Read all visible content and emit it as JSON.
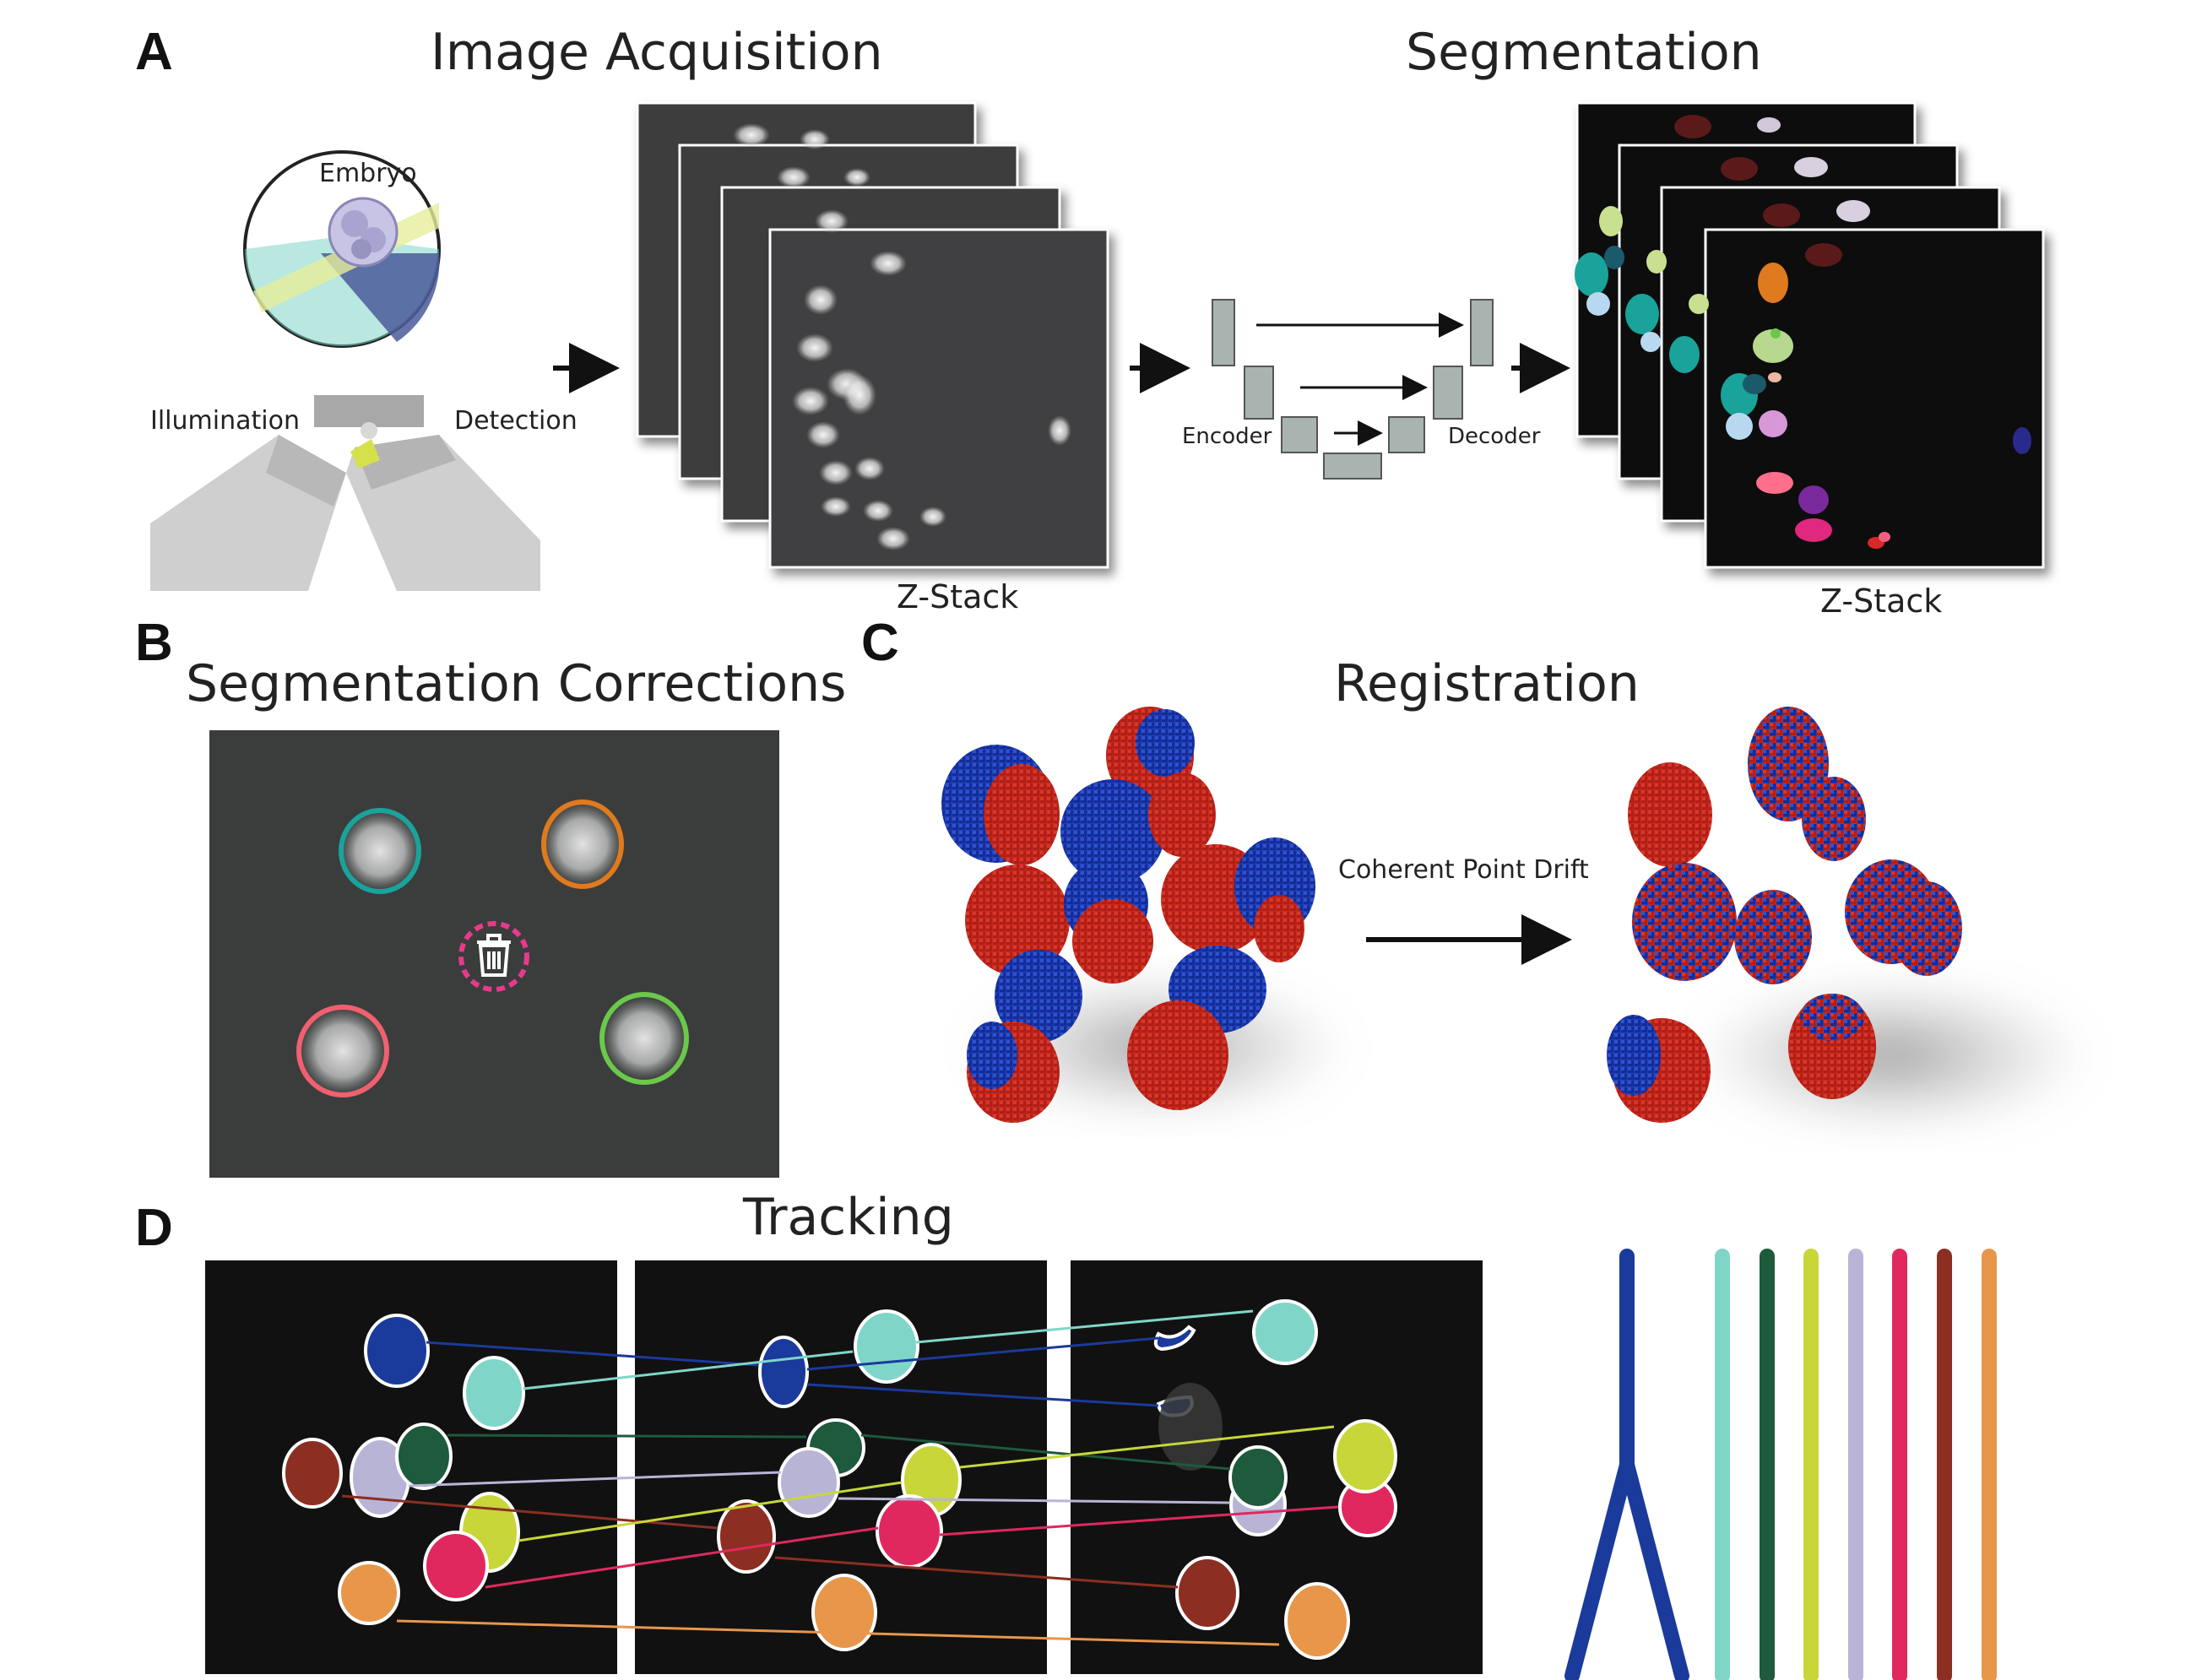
{
  "panels": {
    "a": {
      "letter": "A",
      "acquisition_title": "Image Acquisition",
      "segmentation_title": "Segmentation",
      "embryo_label": "Embryo",
      "illumination_label": "Illumination",
      "detection_label": "Detection",
      "zstack_label_left": "Z-Stack",
      "zstack_label_right": "Z-Stack",
      "encoder_label": "Encoder",
      "decoder_label": "Decoder"
    },
    "b": {
      "letter": "B",
      "title": "Segmentation Corrections",
      "outline_colors": [
        "#1aa39a",
        "#e07a1f",
        "#f06070",
        "#6cc84a"
      ],
      "delete_ring_color": "#e83a8c",
      "delete_icon": "trash-icon"
    },
    "c": {
      "letter": "C",
      "title": "Registration",
      "method_label": "Coherent Point Drift",
      "colors": {
        "red": "#c8281e",
        "blue": "#1f3fb8"
      }
    },
    "d": {
      "letter": "D",
      "title": "Tracking",
      "lineage_colors": [
        "#1a3a9c",
        "#7fd6c8",
        "#1e5a3c",
        "#c8d63a",
        "#b8b4d6",
        "#e0285e",
        "#8c2e22",
        "#e8964a"
      ]
    }
  }
}
